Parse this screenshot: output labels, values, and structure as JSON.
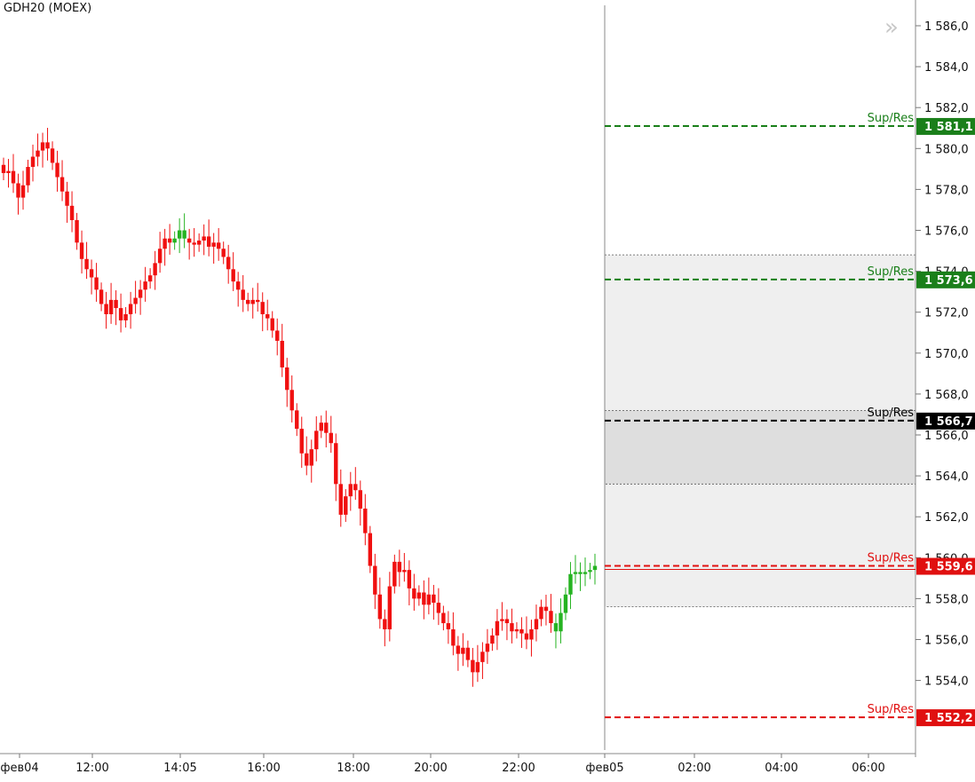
{
  "chart_data": {
    "type": "candlestick",
    "title": "GDH20 (MOEX)",
    "y_ticks": [
      1586.0,
      1584.0,
      1582.0,
      1580.0,
      1578.0,
      1576.0,
      1574.0,
      1572.0,
      1570.0,
      1568.0,
      1566.0,
      1564.0,
      1562.0,
      1560.0,
      1558.0,
      1556.0,
      1554.0
    ],
    "ylim": [
      1551.0,
      1587.0
    ],
    "x_tick_labels": [
      "фев04",
      "12:00",
      "14:05",
      "16:00",
      "18:00",
      "20:00",
      "22:00",
      "фев05",
      "02:00",
      "04:00",
      "06:00"
    ],
    "last_price": 1559.6,
    "levels": [
      {
        "label": "Sup/Res",
        "price": 1581.1,
        "price_text": "1 581,1",
        "color": "#1a7f1a"
      },
      {
        "label": "Sup/Res",
        "price": 1573.6,
        "price_text": "1 573,6",
        "color": "#1a7f1a"
      },
      {
        "label": "Sup/Res",
        "price": 1566.7,
        "price_text": "1 566,7",
        "color": "#000000"
      },
      {
        "label": "Sup/Res",
        "price": 1559.6,
        "price_text": "1 559,6",
        "color": "#e01010"
      },
      {
        "label": "Sup/Res",
        "price": 1552.2,
        "price_text": "1 552,2",
        "color": "#e01010"
      }
    ],
    "zones": [
      {
        "top": 1574.8,
        "bottom": 1557.6,
        "fill": "#efefef"
      },
      {
        "top": 1567.2,
        "bottom": 1563.6,
        "fill": "#dedede"
      }
    ],
    "series_close": [
      1578.8,
      1578.9,
      1578.3,
      1577.6,
      1578.2,
      1579.1,
      1579.6,
      1579.9,
      1580.3,
      1580.0,
      1579.3,
      1578.6,
      1577.9,
      1577.2,
      1576.5,
      1575.4,
      1574.6,
      1574.1,
      1573.7,
      1573.1,
      1572.4,
      1571.9,
      1572.6,
      1572.2,
      1571.6,
      1571.9,
      1572.4,
      1572.7,
      1573.1,
      1573.5,
      1573.8,
      1574.4,
      1575.1,
      1575.6,
      1575.4,
      1575.6,
      1576.0,
      1575.6,
      1575.4,
      1575.3,
      1575.5,
      1575.7,
      1575.2,
      1575.4,
      1575.1,
      1574.7,
      1574.1,
      1573.5,
      1573.1,
      1572.6,
      1572.4,
      1572.6,
      1572.5,
      1571.9,
      1571.7,
      1571.1,
      1570.6,
      1569.3,
      1568.2,
      1567.2,
      1566.3,
      1565.1,
      1564.5,
      1565.3,
      1566.2,
      1566.6,
      1566.1,
      1565.6,
      1563.6,
      1562.1,
      1563.0,
      1563.6,
      1563.3,
      1562.4,
      1561.2,
      1559.6,
      1558.2,
      1557.0,
      1556.5,
      1558.6,
      1559.8,
      1559.3,
      1559.4,
      1558.5,
      1558.0,
      1558.3,
      1557.7,
      1558.2,
      1557.8,
      1557.3,
      1556.8,
      1556.5,
      1555.7,
      1555.3,
      1555.6,
      1555.0,
      1554.4,
      1554.9,
      1555.4,
      1555.8,
      1556.2,
      1556.9,
      1557.0,
      1556.8,
      1556.4,
      1556.5,
      1556.3,
      1556.0,
      1556.5,
      1557.0,
      1557.6,
      1557.4,
      1556.8,
      1556.4,
      1557.3,
      1558.2,
      1559.2,
      1559.3,
      1559.2,
      1559.3,
      1559.4,
      1559.6
    ]
  }
}
